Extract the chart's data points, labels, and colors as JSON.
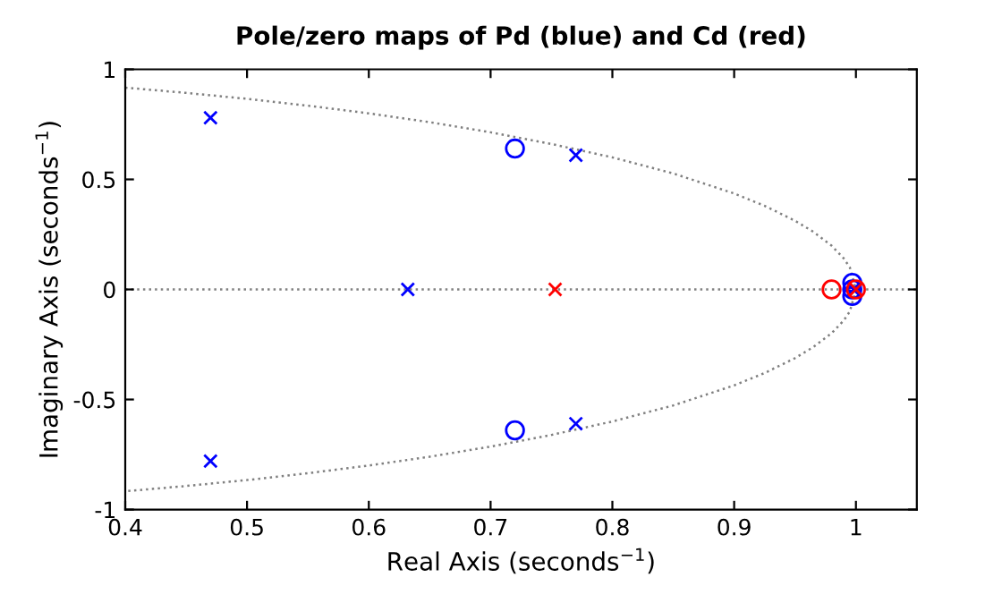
{
  "chart_data": {
    "type": "scatter",
    "title": "Pole/zero maps of Pd (blue) and Cd (red)",
    "xlabel": "Real Axis (seconds$^{−1}$)",
    "ylabel": "Imaginary Axis (seconds$^{−1}$)",
    "series": [
      {
        "type": "line",
        "color": "#808080",
        "line_style": "dotted",
        "marker": "none",
        "x": [
          0.4,
          0.45,
          0.5,
          0.55,
          0.6,
          0.65,
          0.7,
          0.75,
          0.8,
          0.85,
          0.9,
          0.925,
          0.95,
          0.965,
          0.98,
          0.99,
          0.995,
          1,
          0.995,
          0.99,
          0.98,
          0.965,
          0.95,
          0.925,
          0.9,
          0.85,
          0.8,
          0.75,
          0.7,
          0.65,
          0.6,
          0.55,
          0.5,
          0.45,
          0.4
        ],
        "values": [
          0.917,
          0.893,
          0.866,
          0.835,
          0.8,
          0.76,
          0.714,
          0.661,
          0.6,
          0.527,
          0.436,
          0.38,
          0.312,
          0.262,
          0.199,
          0.141,
          0.1,
          0,
          -0.1,
          -0.141,
          -0.199,
          -0.262,
          -0.312,
          -0.38,
          -0.436,
          -0.527,
          -0.6,
          -0.661,
          -0.714,
          -0.76,
          -0.8,
          -0.835,
          -0.866,
          -0.893,
          -0.917
        ]
      },
      {
        "color": "#0000ff",
        "marker": "cross",
        "x": [
          0.47,
          0.47,
          0.77,
          0.77,
          0.632,
          0.998
        ],
        "values": [
          0.78,
          -0.78,
          0.61,
          -0.61,
          0,
          0
        ]
      },
      {
        "color": "#0000ff",
        "marker": "circle",
        "x": [
          0.72,
          0.72,
          0.997,
          0.997,
          0.997
        ],
        "values": [
          0.64,
          -0.64,
          0.03,
          -0.03,
          0
        ]
      },
      {
        "color": "#ff0000",
        "marker": "cross",
        "x": [
          0.753,
          1.0
        ],
        "values": [
          0,
          0
        ]
      },
      {
        "color": "#ff0000",
        "marker": "circle",
        "x": [
          0.98,
          1.0
        ],
        "values": [
          0,
          0
        ]
      }
    ],
    "ref_lines": [
      {
        "axis": "y",
        "value": 0,
        "color": "#808080",
        "line_style": "dotted"
      }
    ],
    "xlim": [
      0.4,
      1.05
    ],
    "xticks": [
      0.4,
      0.5,
      0.6,
      0.7,
      0.8,
      0.9,
      1
    ],
    "ylim": [
      -1,
      1
    ],
    "yticks": [
      -1,
      -0.5,
      0,
      0.5,
      1
    ],
    "grid": false,
    "legend": false
  }
}
